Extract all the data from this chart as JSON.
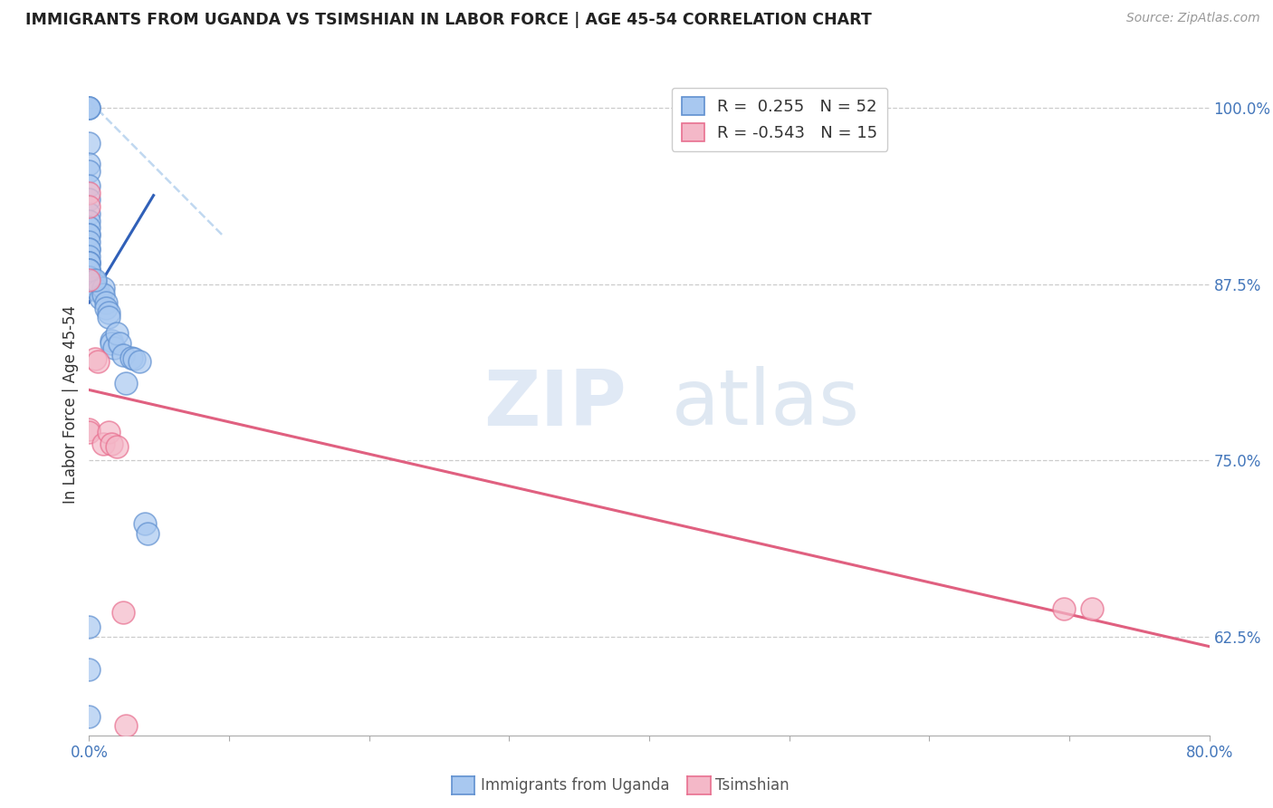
{
  "title": "IMMIGRANTS FROM UGANDA VS TSIMSHIAN IN LABOR FORCE | AGE 45-54 CORRELATION CHART",
  "source": "Source: ZipAtlas.com",
  "ylabel": "In Labor Force | Age 45-54",
  "xlim": [
    0.0,
    0.8
  ],
  "ylim": [
    0.555,
    1.025
  ],
  "x_ticks": [
    0.0,
    0.1,
    0.2,
    0.3,
    0.4,
    0.5,
    0.6,
    0.7,
    0.8
  ],
  "x_tick_labels": [
    "0.0%",
    "",
    "",
    "",
    "",
    "",
    "",
    "",
    "80.0%"
  ],
  "y_ticks_right": [
    0.625,
    0.75,
    0.875,
    1.0
  ],
  "y_tick_labels_right": [
    "62.5%",
    "75.0%",
    "87.5%",
    "100.0%"
  ],
  "legend_r1": "R =  0.255",
  "legend_n1": "N = 52",
  "legend_r2": "R = -0.543",
  "legend_n2": "N = 15",
  "color_uganda": "#A8C8F0",
  "color_tsimshian": "#F4B8C8",
  "color_uganda_border": "#6090D0",
  "color_tsimshian_border": "#E87090",
  "color_uganda_line": "#3060B8",
  "color_tsimshian_line": "#E06080",
  "color_ref_line": "#C0D8F0",
  "watermark_zip": "ZIP",
  "watermark_atlas": "atlas",
  "uganda_x": [
    0.0,
    0.0,
    0.0,
    0.0,
    0.0,
    0.0,
    0.0,
    0.0,
    0.0,
    0.0,
    0.0,
    0.0,
    0.0,
    0.0,
    0.0,
    0.0,
    0.0,
    0.0,
    0.0,
    0.0,
    0.0,
    0.0,
    0.0,
    0.0,
    0.004,
    0.004,
    0.004,
    0.006,
    0.008,
    0.01,
    0.01,
    0.012,
    0.012,
    0.014,
    0.014,
    0.016,
    0.016,
    0.018,
    0.02,
    0.022,
    0.024,
    0.026,
    0.03,
    0.032,
    0.036,
    0.04,
    0.042,
    0.0,
    0.0,
    0.0,
    0.0,
    0.004
  ],
  "uganda_y": [
    1.0,
    1.0,
    1.0,
    0.975,
    0.96,
    0.955,
    0.945,
    0.935,
    0.925,
    0.92,
    0.915,
    0.91,
    0.91,
    0.905,
    0.9,
    0.9,
    0.895,
    0.89,
    0.89,
    0.89,
    0.885,
    0.885,
    0.88,
    0.88,
    0.877,
    0.875,
    0.872,
    0.87,
    0.865,
    0.872,
    0.868,
    0.862,
    0.858,
    0.855,
    0.852,
    0.835,
    0.833,
    0.83,
    0.84,
    0.833,
    0.825,
    0.805,
    0.823,
    0.822,
    0.82,
    0.705,
    0.698,
    0.632,
    0.602,
    0.568,
    0.885,
    0.878
  ],
  "tsimshian_x": [
    0.0,
    0.0,
    0.0,
    0.0,
    0.0,
    0.004,
    0.006,
    0.01,
    0.014,
    0.016,
    0.02,
    0.024,
    0.696,
    0.716,
    0.026
  ],
  "tsimshian_y": [
    0.94,
    0.93,
    0.878,
    0.772,
    0.77,
    0.822,
    0.82,
    0.762,
    0.77,
    0.762,
    0.76,
    0.642,
    0.645,
    0.645,
    0.562
  ],
  "blue_line_x": [
    0.0,
    0.046
  ],
  "blue_line_y": [
    0.862,
    0.938
  ],
  "pink_line_x": [
    0.0,
    0.8
  ],
  "pink_line_y": [
    0.8,
    0.618
  ],
  "ref_line_x": [
    0.0,
    0.095
  ],
  "ref_line_y": [
    1.005,
    0.91
  ]
}
